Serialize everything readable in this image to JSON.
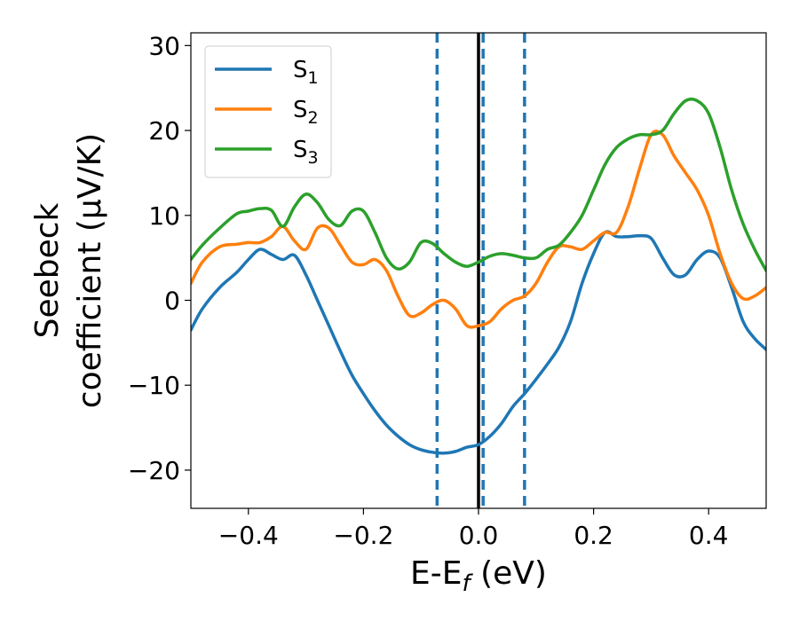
{
  "chart_data": {
    "type": "line",
    "title": "",
    "xlabel_main": "E-E",
    "xlabel_sub": "f",
    "xlabel_unit": " (eV)",
    "ylabel_line1": "Seebeck",
    "ylabel_line2": "coefficient  (μV/K)",
    "xlim": [
      -0.5,
      0.5
    ],
    "ylim": [
      -24.5,
      31.5
    ],
    "xticks": [
      -0.4,
      -0.2,
      0.0,
      0.2,
      0.4
    ],
    "xtick_labels": [
      "−0.4",
      "−0.2",
      "0.0",
      "0.2",
      "0.4"
    ],
    "yticks": [
      -20,
      -10,
      0,
      10,
      20,
      30
    ],
    "ytick_labels": [
      "−20",
      "−10",
      "0",
      "10",
      "20",
      "30"
    ],
    "grid": false,
    "legend_position": "top-left",
    "vlines": [
      {
        "x": -0.072,
        "style": "dashed",
        "color": "#1f77b4"
      },
      {
        "x": 0.008,
        "style": "dashed",
        "color": "#1f77b4"
      },
      {
        "x": 0.08,
        "style": "dashed",
        "color": "#1f77b4"
      },
      {
        "x": 0.0,
        "style": "solid",
        "color": "#000000"
      }
    ],
    "series": [
      {
        "name": "S",
        "subscript": "1",
        "color": "#1f77b4",
        "x": [
          -0.5,
          -0.48,
          -0.45,
          -0.42,
          -0.4,
          -0.38,
          -0.36,
          -0.34,
          -0.32,
          -0.3,
          -0.28,
          -0.26,
          -0.24,
          -0.22,
          -0.2,
          -0.18,
          -0.16,
          -0.14,
          -0.12,
          -0.1,
          -0.08,
          -0.06,
          -0.04,
          -0.02,
          0.0,
          0.02,
          0.04,
          0.06,
          0.08,
          0.1,
          0.12,
          0.14,
          0.16,
          0.18,
          0.2,
          0.22,
          0.24,
          0.26,
          0.28,
          0.3,
          0.32,
          0.34,
          0.36,
          0.38,
          0.4,
          0.42,
          0.44,
          0.46,
          0.48,
          0.5
        ],
        "y": [
          -3.5,
          -1.0,
          1.5,
          3.3,
          4.8,
          6.0,
          5.4,
          4.8,
          5.3,
          3.0,
          0.0,
          -3.0,
          -6.0,
          -8.8,
          -11.0,
          -13.0,
          -14.7,
          -16.0,
          -17.0,
          -17.6,
          -17.9,
          -18.0,
          -17.8,
          -17.3,
          -17.0,
          -16.0,
          -14.5,
          -12.5,
          -11.0,
          -9.3,
          -7.5,
          -5.5,
          -2.5,
          2.0,
          5.5,
          8.0,
          7.5,
          7.5,
          7.6,
          7.3,
          5.0,
          3.0,
          3.0,
          4.8,
          5.8,
          5.0,
          1.5,
          -2.5,
          -4.5,
          -5.8
        ]
      },
      {
        "name": "S",
        "subscript": "2",
        "color": "#ff7f0e",
        "x": [
          -0.5,
          -0.48,
          -0.45,
          -0.42,
          -0.4,
          -0.38,
          -0.36,
          -0.34,
          -0.32,
          -0.3,
          -0.28,
          -0.26,
          -0.24,
          -0.22,
          -0.2,
          -0.18,
          -0.16,
          -0.14,
          -0.12,
          -0.1,
          -0.08,
          -0.06,
          -0.04,
          -0.02,
          0.0,
          0.02,
          0.04,
          0.06,
          0.08,
          0.1,
          0.12,
          0.14,
          0.16,
          0.18,
          0.2,
          0.22,
          0.24,
          0.26,
          0.28,
          0.3,
          0.32,
          0.34,
          0.36,
          0.38,
          0.4,
          0.42,
          0.44,
          0.46,
          0.48,
          0.5
        ],
        "y": [
          2.0,
          4.5,
          6.3,
          6.6,
          6.8,
          6.8,
          7.5,
          8.7,
          7.0,
          6.0,
          8.5,
          8.5,
          6.5,
          4.5,
          4.2,
          4.8,
          3.5,
          0.5,
          -1.8,
          -1.5,
          -0.5,
          0.0,
          -1.0,
          -3.0,
          -3.0,
          -2.5,
          -1.0,
          0.0,
          0.5,
          2.0,
          4.5,
          6.3,
          6.3,
          6.0,
          7.0,
          8.0,
          8.0,
          11.0,
          15.5,
          19.5,
          19.5,
          17.0,
          15.0,
          13.0,
          10.0,
          5.5,
          2.0,
          0.2,
          0.5,
          1.5
        ]
      },
      {
        "name": "S",
        "subscript": "3",
        "color": "#2ca02c",
        "x": [
          -0.5,
          -0.48,
          -0.45,
          -0.42,
          -0.4,
          -0.38,
          -0.36,
          -0.34,
          -0.32,
          -0.3,
          -0.28,
          -0.26,
          -0.24,
          -0.22,
          -0.2,
          -0.18,
          -0.16,
          -0.14,
          -0.12,
          -0.1,
          -0.08,
          -0.06,
          -0.04,
          -0.02,
          0.0,
          0.02,
          0.04,
          0.06,
          0.08,
          0.1,
          0.12,
          0.14,
          0.16,
          0.18,
          0.2,
          0.22,
          0.24,
          0.26,
          0.28,
          0.3,
          0.32,
          0.34,
          0.36,
          0.38,
          0.4,
          0.42,
          0.44,
          0.46,
          0.48,
          0.5
        ],
        "y": [
          4.8,
          6.5,
          8.5,
          10.2,
          10.5,
          10.8,
          10.6,
          8.7,
          11.0,
          12.5,
          11.5,
          9.5,
          8.8,
          10.5,
          10.5,
          8.0,
          5.0,
          3.7,
          4.5,
          6.8,
          6.7,
          5.5,
          4.5,
          4.0,
          4.5,
          5.2,
          5.5,
          5.3,
          5.0,
          5.0,
          6.0,
          6.5,
          8.0,
          10.0,
          13.0,
          16.0,
          18.0,
          19.0,
          19.5,
          19.5,
          20.0,
          22.0,
          23.5,
          23.5,
          22.0,
          18.0,
          13.0,
          9.0,
          6.0,
          3.5
        ]
      }
    ]
  }
}
